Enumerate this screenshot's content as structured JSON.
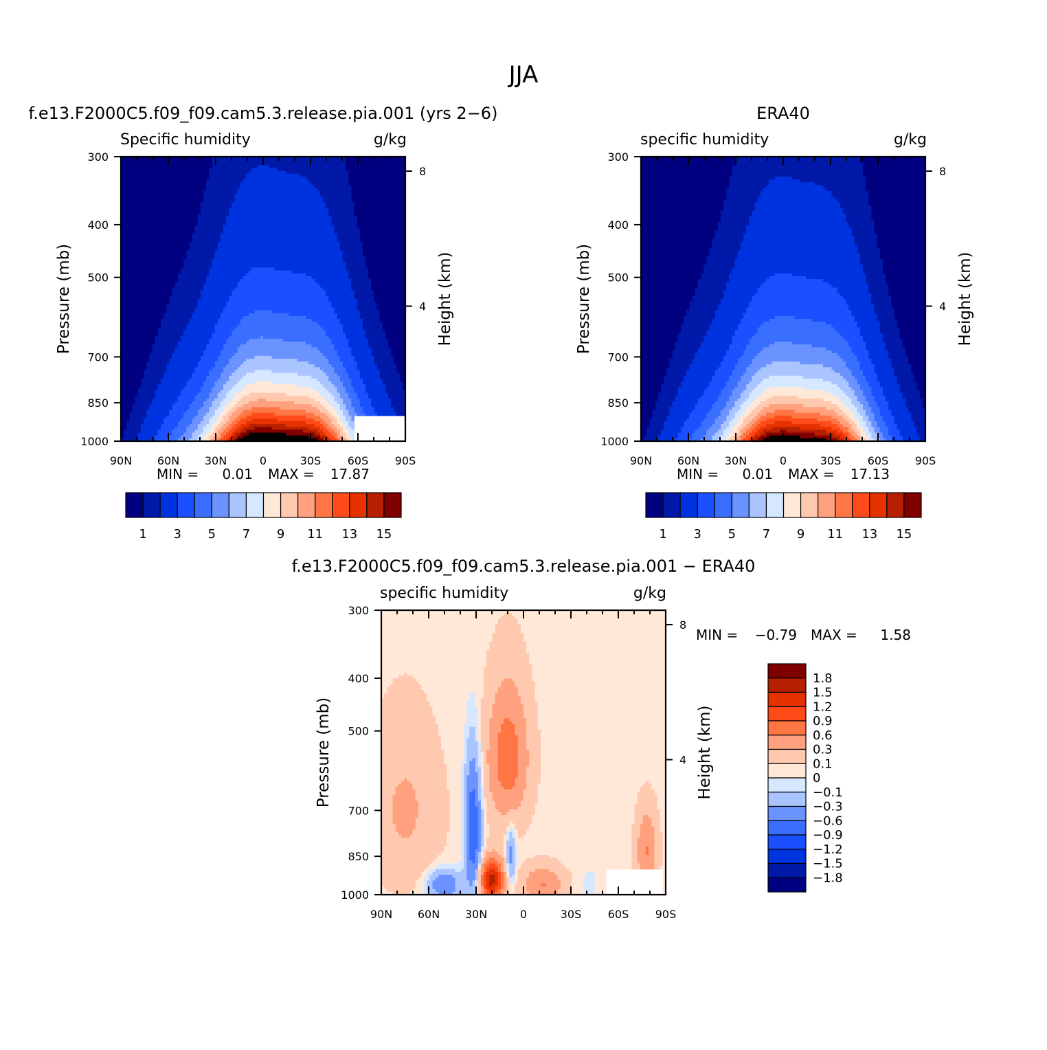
{
  "figure": {
    "title": "JJA"
  },
  "colors": {
    "model_fill": [
      "#000080",
      "#0019a8",
      "#0033e0",
      "#1a50ff",
      "#3a6eff",
      "#6b93ff",
      "#aac4ff",
      "#d6e8ff",
      "#ffe8d8",
      "#ffc9b0",
      "#ffa17f",
      "#ff7645",
      "#ff4a1a",
      "#e63200",
      "#b52000",
      "#800000"
    ],
    "diff_fill": [
      "#000080",
      "#0019a8",
      "#0033e0",
      "#1a50ff",
      "#3a6eff",
      "#6b93ff",
      "#aac4ff",
      "#d6e8ff",
      "#ffe8d8",
      "#ffc9b0",
      "#ffa17f",
      "#ff7645",
      "#ff4a1a",
      "#e63200",
      "#b52000",
      "#800000"
    ]
  },
  "chart_data": [
    {
      "id": "model",
      "type": "heatmap",
      "title": "f.e13.F2000C5.f09_f09.cam5.3.release.pia.001 (yrs 2−6)",
      "left_label": "Specific humidity",
      "right_label": "g/kg",
      "xlabel": "",
      "ylabel": "Pressure (mb)",
      "y2label": "Height (km)",
      "x_ticks": [
        "90N",
        "60N",
        "30N",
        "0",
        "30S",
        "60S",
        "90S"
      ],
      "x_tick_values": [
        90,
        60,
        30,
        0,
        -30,
        -60,
        -90
      ],
      "xlim": [
        90,
        -90
      ],
      "y_ticks": [
        "300",
        "400",
        "500",
        "700",
        "850",
        "1000"
      ],
      "y_tick_values": [
        300,
        400,
        500,
        700,
        850,
        1000
      ],
      "ylim": [
        1000,
        300
      ],
      "y2_ticks": [
        "8",
        "4"
      ],
      "y2_tick_values": [
        8,
        4
      ],
      "min_label": "MIN =",
      "min_value": "0.01",
      "max_label": "MAX =",
      "max_value": "17.87",
      "colorbar": {
        "orientation": "horizontal",
        "levels": [
          0.5,
          1,
          2,
          3,
          4,
          5,
          6,
          7,
          8,
          9,
          10,
          11,
          12,
          13,
          14,
          15
        ],
        "labels": [
          "1",
          "3",
          "5",
          "7",
          "9",
          "11",
          "13",
          "15"
        ]
      },
      "field": {
        "center_lat": -12,
        "surface_peak": 18.5,
        "scale_height_hpa": 240,
        "north_halfwidth_deg": 68,
        "south_halfwidth_deg": 58,
        "missing_region": {
          "lat_from": -58,
          "lat_to": -90,
          "p_from": 900,
          "p_to": 1000
        }
      }
    },
    {
      "id": "obs",
      "type": "heatmap",
      "title": "ERA40",
      "left_label": "specific humidity",
      "right_label": "g/kg",
      "xlabel": "",
      "ylabel": "Pressure (mb)",
      "y2label": "Height (km)",
      "x_ticks": [
        "90N",
        "60N",
        "30N",
        "0",
        "30S",
        "60S",
        "90S"
      ],
      "x_tick_values": [
        90,
        60,
        30,
        0,
        -30,
        -60,
        -90
      ],
      "xlim": [
        90,
        -90
      ],
      "y_ticks": [
        "300",
        "400",
        "500",
        "700",
        "850",
        "1000"
      ],
      "y_tick_values": [
        300,
        400,
        500,
        700,
        850,
        1000
      ],
      "ylim": [
        1000,
        300
      ],
      "y2_ticks": [
        "8",
        "4"
      ],
      "y2_tick_values": [
        8,
        4
      ],
      "min_label": "MIN =",
      "min_value": "0.01",
      "max_label": "MAX =",
      "max_value": "17.13",
      "colorbar": {
        "orientation": "horizontal",
        "levels": [
          0.5,
          1,
          2,
          3,
          4,
          5,
          6,
          7,
          8,
          9,
          10,
          11,
          12,
          13,
          14,
          15
        ],
        "labels": [
          "1",
          "3",
          "5",
          "7",
          "9",
          "11",
          "13",
          "15"
        ]
      },
      "field": {
        "center_lat": -12,
        "surface_peak": 17.5,
        "scale_height_hpa": 240,
        "north_halfwidth_deg": 68,
        "south_halfwidth_deg": 56
      }
    },
    {
      "id": "diff",
      "type": "heatmap",
      "title": "f.e13.F2000C5.f09_f09.cam5.3.release.pia.001 − ERA40",
      "left_label": "specific humidity",
      "right_label": "g/kg",
      "xlabel": "",
      "ylabel": "Pressure (mb)",
      "y2label": "Height (km)",
      "x_ticks": [
        "90N",
        "60N",
        "30N",
        "0",
        "30S",
        "60S",
        "90S"
      ],
      "x_tick_values": [
        90,
        60,
        30,
        0,
        -30,
        -60,
        -90
      ],
      "xlim": [
        90,
        -90
      ],
      "y_ticks": [
        "300",
        "400",
        "500",
        "700",
        "850",
        "1000"
      ],
      "y_tick_values": [
        300,
        400,
        500,
        700,
        850,
        1000
      ],
      "ylim": [
        1000,
        300
      ],
      "y2_ticks": [
        "8",
        "4"
      ],
      "y2_tick_values": [
        8,
        4
      ],
      "min_label": "MIN =",
      "min_value": "−0.79",
      "max_label": "MAX =",
      "max_value": "1.58",
      "colorbar": {
        "orientation": "vertical",
        "levels": [
          -1.8,
          -1.5,
          -1.2,
          -0.9,
          -0.6,
          -0.3,
          -0.1,
          0,
          0.1,
          0.3,
          0.6,
          0.9,
          1.2,
          1.5,
          1.8
        ],
        "labels": [
          "1.8",
          "1.5",
          "1.2",
          "0.9",
          "0.6",
          "0.3",
          "0.1",
          "0",
          "−0.1",
          "−0.3",
          "−0.6",
          "−0.9",
          "−1.2",
          "−1.5",
          "−1.8"
        ]
      },
      "field": {
        "missing_region": {
          "lat_from": -53,
          "lat_to": -88,
          "p_from": 900,
          "p_to": 1000
        }
      }
    }
  ]
}
